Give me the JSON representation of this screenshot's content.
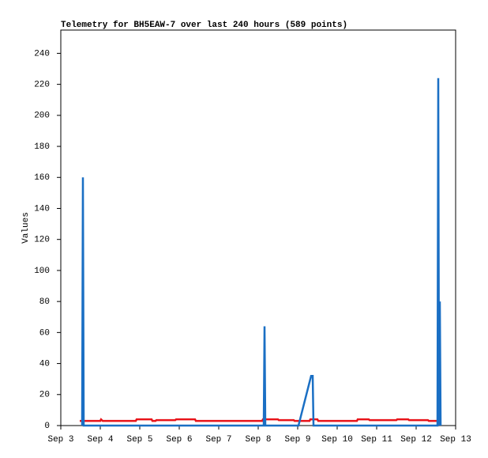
{
  "chart_data": {
    "type": "line",
    "title": "Telemetry for BH5EAW-7 over last 240 hours (589 points)",
    "y_label": "Values",
    "xlim": [
      3,
      13
    ],
    "xticks": [
      {
        "value": 3,
        "label": "Sep 3"
      },
      {
        "value": 4,
        "label": "Sep 4"
      },
      {
        "value": 5,
        "label": "Sep 5"
      },
      {
        "value": 6,
        "label": "Sep 6"
      },
      {
        "value": 7,
        "label": "Sep 7"
      },
      {
        "value": 8,
        "label": "Sep 8"
      },
      {
        "value": 9,
        "label": "Sep 9"
      },
      {
        "value": 10,
        "label": "Sep 10"
      },
      {
        "value": 11,
        "label": "Sep 11"
      },
      {
        "value": 12,
        "label": "Sep 12"
      },
      {
        "value": 13,
        "label": "Sep 13"
      }
    ],
    "ylim": [
      0,
      255
    ],
    "yticks": [
      0,
      20,
      40,
      60,
      80,
      100,
      120,
      140,
      160,
      180,
      200,
      220,
      240
    ],
    "series": [
      {
        "color": "#e8141a",
        "x": [
          3.48,
          4.0,
          4.02,
          4.06,
          4.9,
          4.92,
          5.3,
          5.32,
          5.4,
          5.42,
          5.9,
          5.92,
          6.4,
          6.42,
          8.1,
          8.12,
          8.5,
          8.52,
          8.9,
          8.92,
          9.3,
          9.32,
          9.5,
          9.52,
          10.5,
          10.52,
          10.8,
          10.82,
          11.5,
          11.52,
          11.8,
          11.82,
          12.3,
          12.32,
          12.56
        ],
        "values": [
          3,
          3,
          4,
          3,
          3,
          4,
          4,
          3,
          3,
          3.5,
          3.5,
          4,
          4,
          3,
          3,
          4,
          4,
          3.5,
          3.5,
          3,
          3,
          4,
          4,
          3,
          3,
          4,
          4,
          3.5,
          3.5,
          4,
          4,
          3.5,
          3.5,
          3,
          3
        ]
      },
      {
        "color": "#1a6fc4",
        "x": [
          3.54,
          3.56,
          3.58,
          8.14,
          8.16,
          8.18,
          9.02,
          9.34,
          9.38,
          9.4,
          12.54,
          12.56,
          12.58,
          12.6,
          12.62
        ],
        "values": [
          0,
          160,
          0,
          0,
          64,
          0,
          0,
          32,
          32,
          0,
          0,
          224,
          0,
          80,
          0
        ]
      }
    ]
  }
}
